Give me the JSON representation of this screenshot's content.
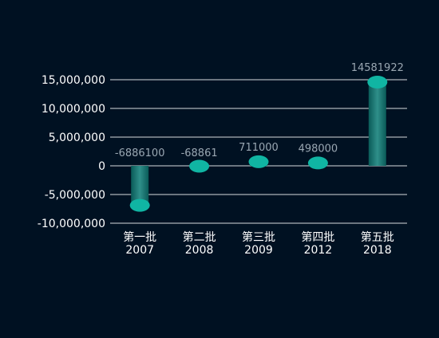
{
  "chart_data": {
    "type": "bar",
    "style": "cylinder",
    "categories": [
      "第一批\n2007",
      "第二批\n2008",
      "第三批\n2009",
      "第四批\n2012",
      "第五批\n2018"
    ],
    "values": [
      -6886100,
      -68861,
      711000,
      498000,
      14581922
    ],
    "data_labels": [
      "-6886100",
      "-68861",
      "711000",
      "498000",
      "14581922"
    ],
    "y_ticks": [
      "15,000,000",
      "10,000,000",
      "5,000,000",
      "0",
      "-5,000,000",
      "-10,000,000"
    ],
    "ylim": [
      -10000000,
      15000000
    ],
    "grid": true,
    "title": "",
    "xlabel": "",
    "ylabel": ""
  },
  "colors": {
    "background": "#001122",
    "gridline": "#ffffff",
    "axis_text": "#ffffff",
    "data_label": "#9aa7b2",
    "bar_cap": "#10b5a3",
    "bar_edge": "#0a5b58",
    "bar_center": "#2f8f8a"
  }
}
